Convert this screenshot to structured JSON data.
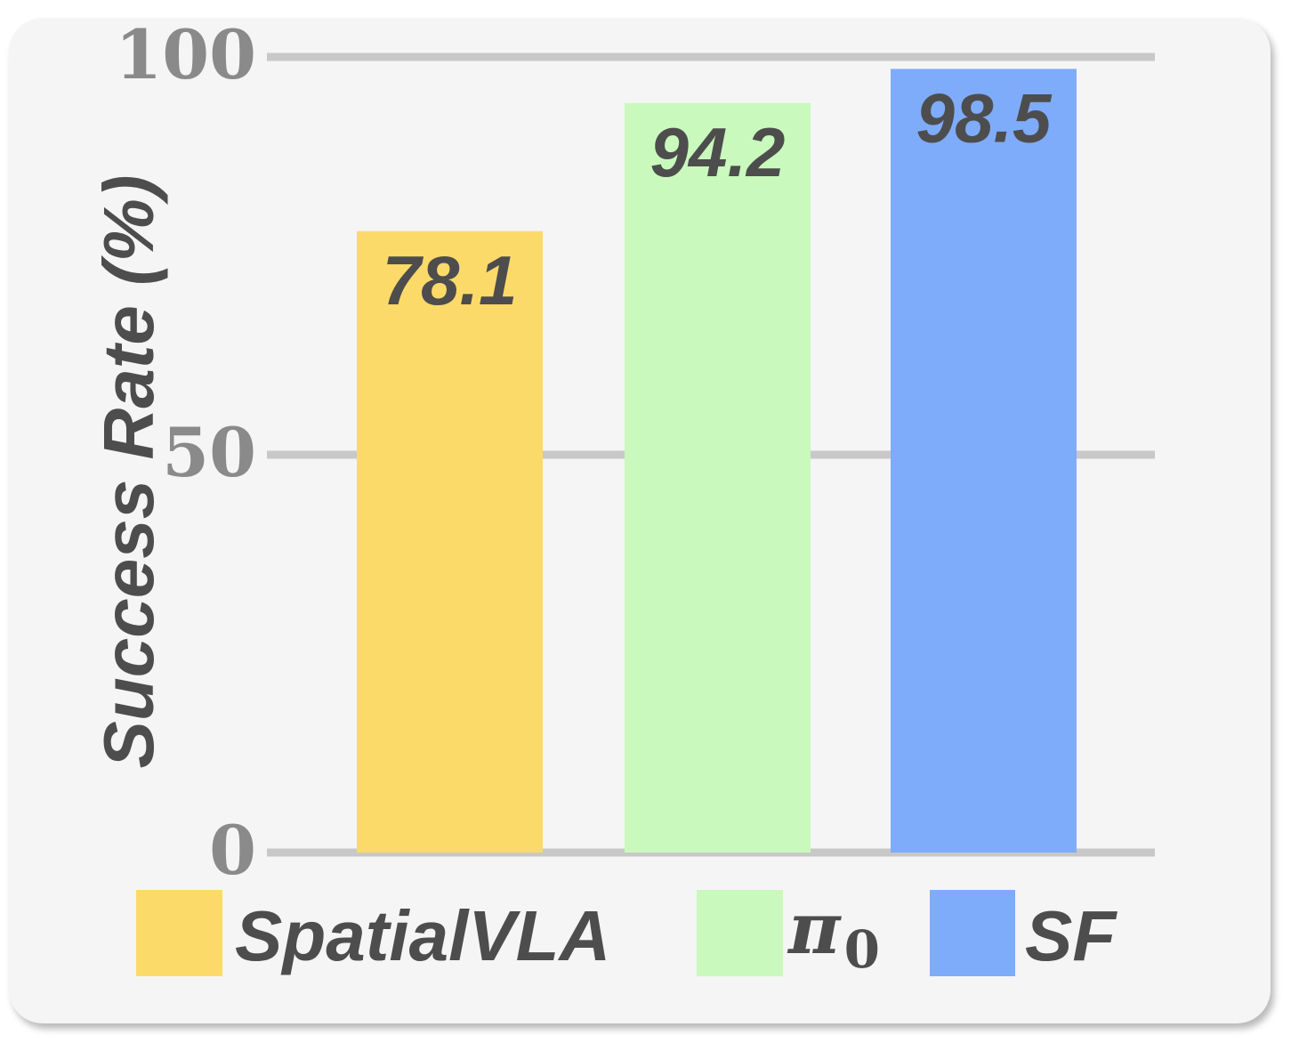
{
  "chart_data": {
    "type": "bar",
    "categories": [
      "SpatialVLA",
      "π0",
      "SF"
    ],
    "values": [
      78.1,
      94.2,
      98.5
    ],
    "value_labels": [
      "78.1",
      "94.2",
      "98.5"
    ],
    "colors": [
      "#fcda6a",
      "#c9f9bd",
      "#7eacfb"
    ],
    "ylabel": "Success Rate (%)",
    "xlabel": "",
    "ylim": [
      0,
      100
    ],
    "yticks": [
      0,
      50,
      100
    ],
    "ytick_labels": [
      "0",
      "50",
      "100"
    ],
    "grid": true,
    "legend": {
      "placement": "bottom",
      "entries": [
        {
          "label": "SpatialVLA",
          "color": "#fcda6a"
        },
        {
          "label": "π",
          "subscript": "0",
          "color": "#c9f9bd"
        },
        {
          "label": "SF",
          "color": "#7eacfb"
        }
      ]
    }
  }
}
